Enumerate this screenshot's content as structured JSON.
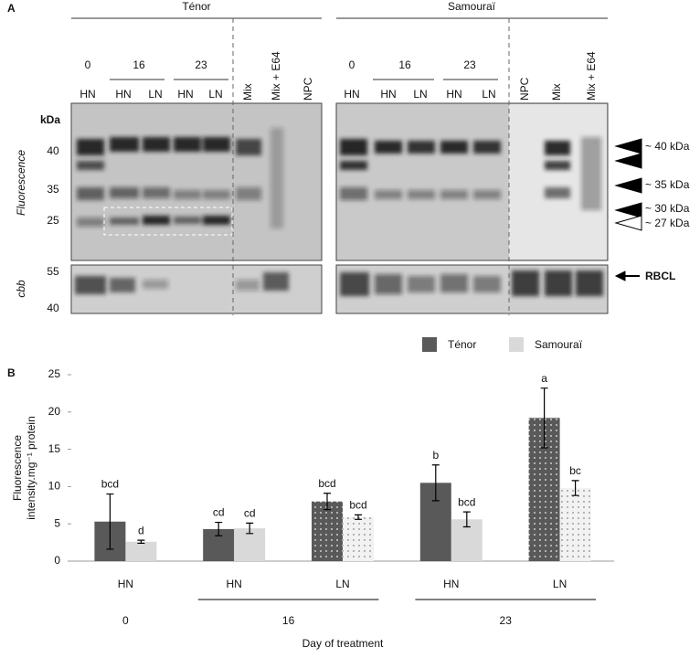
{
  "panel_a": {
    "label": "A",
    "kda_label": "kDa",
    "fluorescence_label": "Fluorescence",
    "cbb_label": "cbb",
    "fluorescence_markers": [
      "40",
      "35",
      "25"
    ],
    "cbb_markers": [
      "55",
      "40"
    ],
    "groups": [
      {
        "name": "Ténor",
        "days": [
          "0",
          "16",
          "23"
        ],
        "lanes": [
          "HN",
          "HN",
          "LN",
          "HN",
          "LN",
          "Mix",
          "Mix + E64",
          "NPC"
        ]
      },
      {
        "name": "Samouraï",
        "days": [
          "0",
          "16",
          "23"
        ],
        "lanes": [
          "HN",
          "HN",
          "LN",
          "HN",
          "LN",
          "NPC",
          "Mix",
          "Mix + E64"
        ]
      }
    ],
    "band_labels": [
      "~ 40 kDa",
      "~ 35 kDa",
      "~ 30 kDa",
      "~ 27 kDa"
    ],
    "rbcl_label": "RBCL"
  },
  "panel_b_label": "B",
  "chart_data": {
    "type": "bar",
    "categories": [
      "HN",
      "HN",
      "LN",
      "HN",
      "LN"
    ],
    "groups": [
      {
        "label": "0",
        "categories": 1
      },
      {
        "label": "16",
        "categories": 2
      },
      {
        "label": "23",
        "categories": 2
      }
    ],
    "dotted": [
      false,
      false,
      true,
      false,
      true
    ],
    "series": [
      {
        "name": "Ténor",
        "color": "#595959",
        "values": [
          5.3,
          4.3,
          8.0,
          10.5,
          19.2
        ],
        "errors": [
          3.7,
          0.9,
          1.1,
          2.4,
          4.0
        ],
        "letters": [
          "bcd",
          "cd",
          "bcd",
          "b",
          "a"
        ]
      },
      {
        "name": "Samouraï",
        "color": "#d9d9d9",
        "values": [
          2.6,
          4.4,
          5.9,
          5.6,
          9.8
        ],
        "errors": [
          0.2,
          0.7,
          0.3,
          1.0,
          1.0
        ],
        "letters": [
          "d",
          "cd",
          "bcd",
          "bcd",
          "bc"
        ]
      }
    ],
    "ylim": [
      0,
      25
    ],
    "yticks": [
      0,
      5,
      10,
      15,
      20,
      25
    ],
    "x_label": "Day of treatment",
    "y_label": [
      "Fluorescence",
      "intensity.mg⁻¹ protein"
    ],
    "legend": "top-right"
  }
}
